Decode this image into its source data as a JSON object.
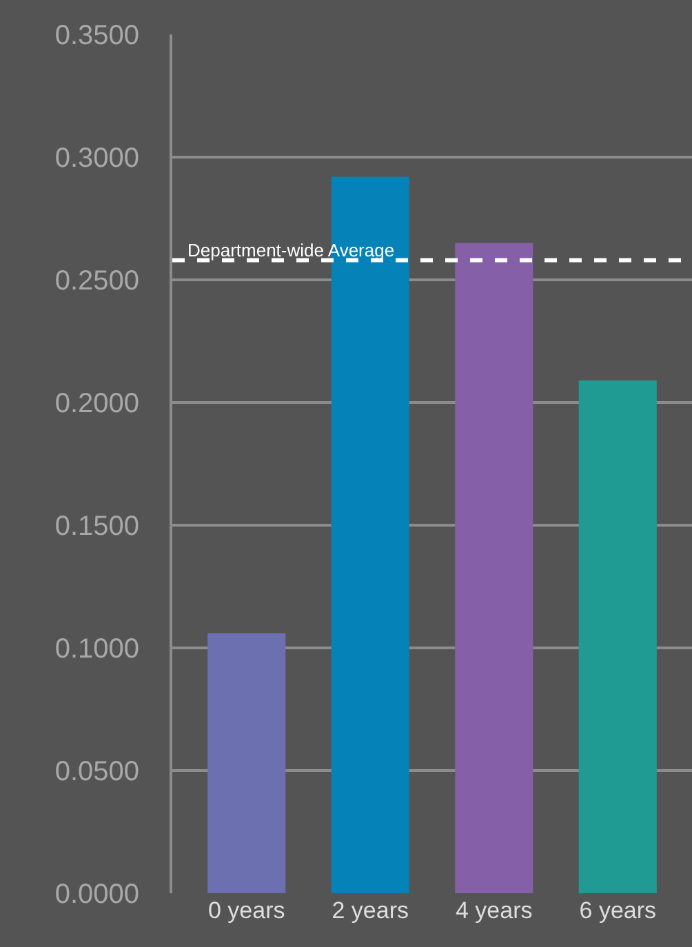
{
  "chart_data": {
    "type": "bar",
    "categories": [
      "0 years",
      "2 years",
      "4 years",
      "6 years"
    ],
    "values": [
      0.106,
      0.292,
      0.265,
      0.209
    ],
    "colors": [
      "#6c6fb0",
      "#0583b8",
      "#8560a8",
      "#1f9b93"
    ],
    "ylim": [
      0,
      0.35
    ],
    "yticks": [
      {
        "value": 0,
        "label": "0.0000"
      },
      {
        "value": 0.05,
        "label": "0.0500"
      },
      {
        "value": 0.1,
        "label": "0.1000"
      },
      {
        "value": 0.15,
        "label": "0.1500"
      },
      {
        "value": 0.2,
        "label": "0.2000"
      },
      {
        "value": 0.25,
        "label": "0.2500"
      },
      {
        "value": 0.3,
        "label": "0.3000"
      },
      {
        "value": 0.35,
        "label": "0.3500"
      }
    ],
    "grid": "y",
    "ref_lines": [
      {
        "axis": "y",
        "value": 0.258,
        "label": "Department-wide Average",
        "color": "#ffffff",
        "line_style": "dashed"
      }
    ]
  }
}
